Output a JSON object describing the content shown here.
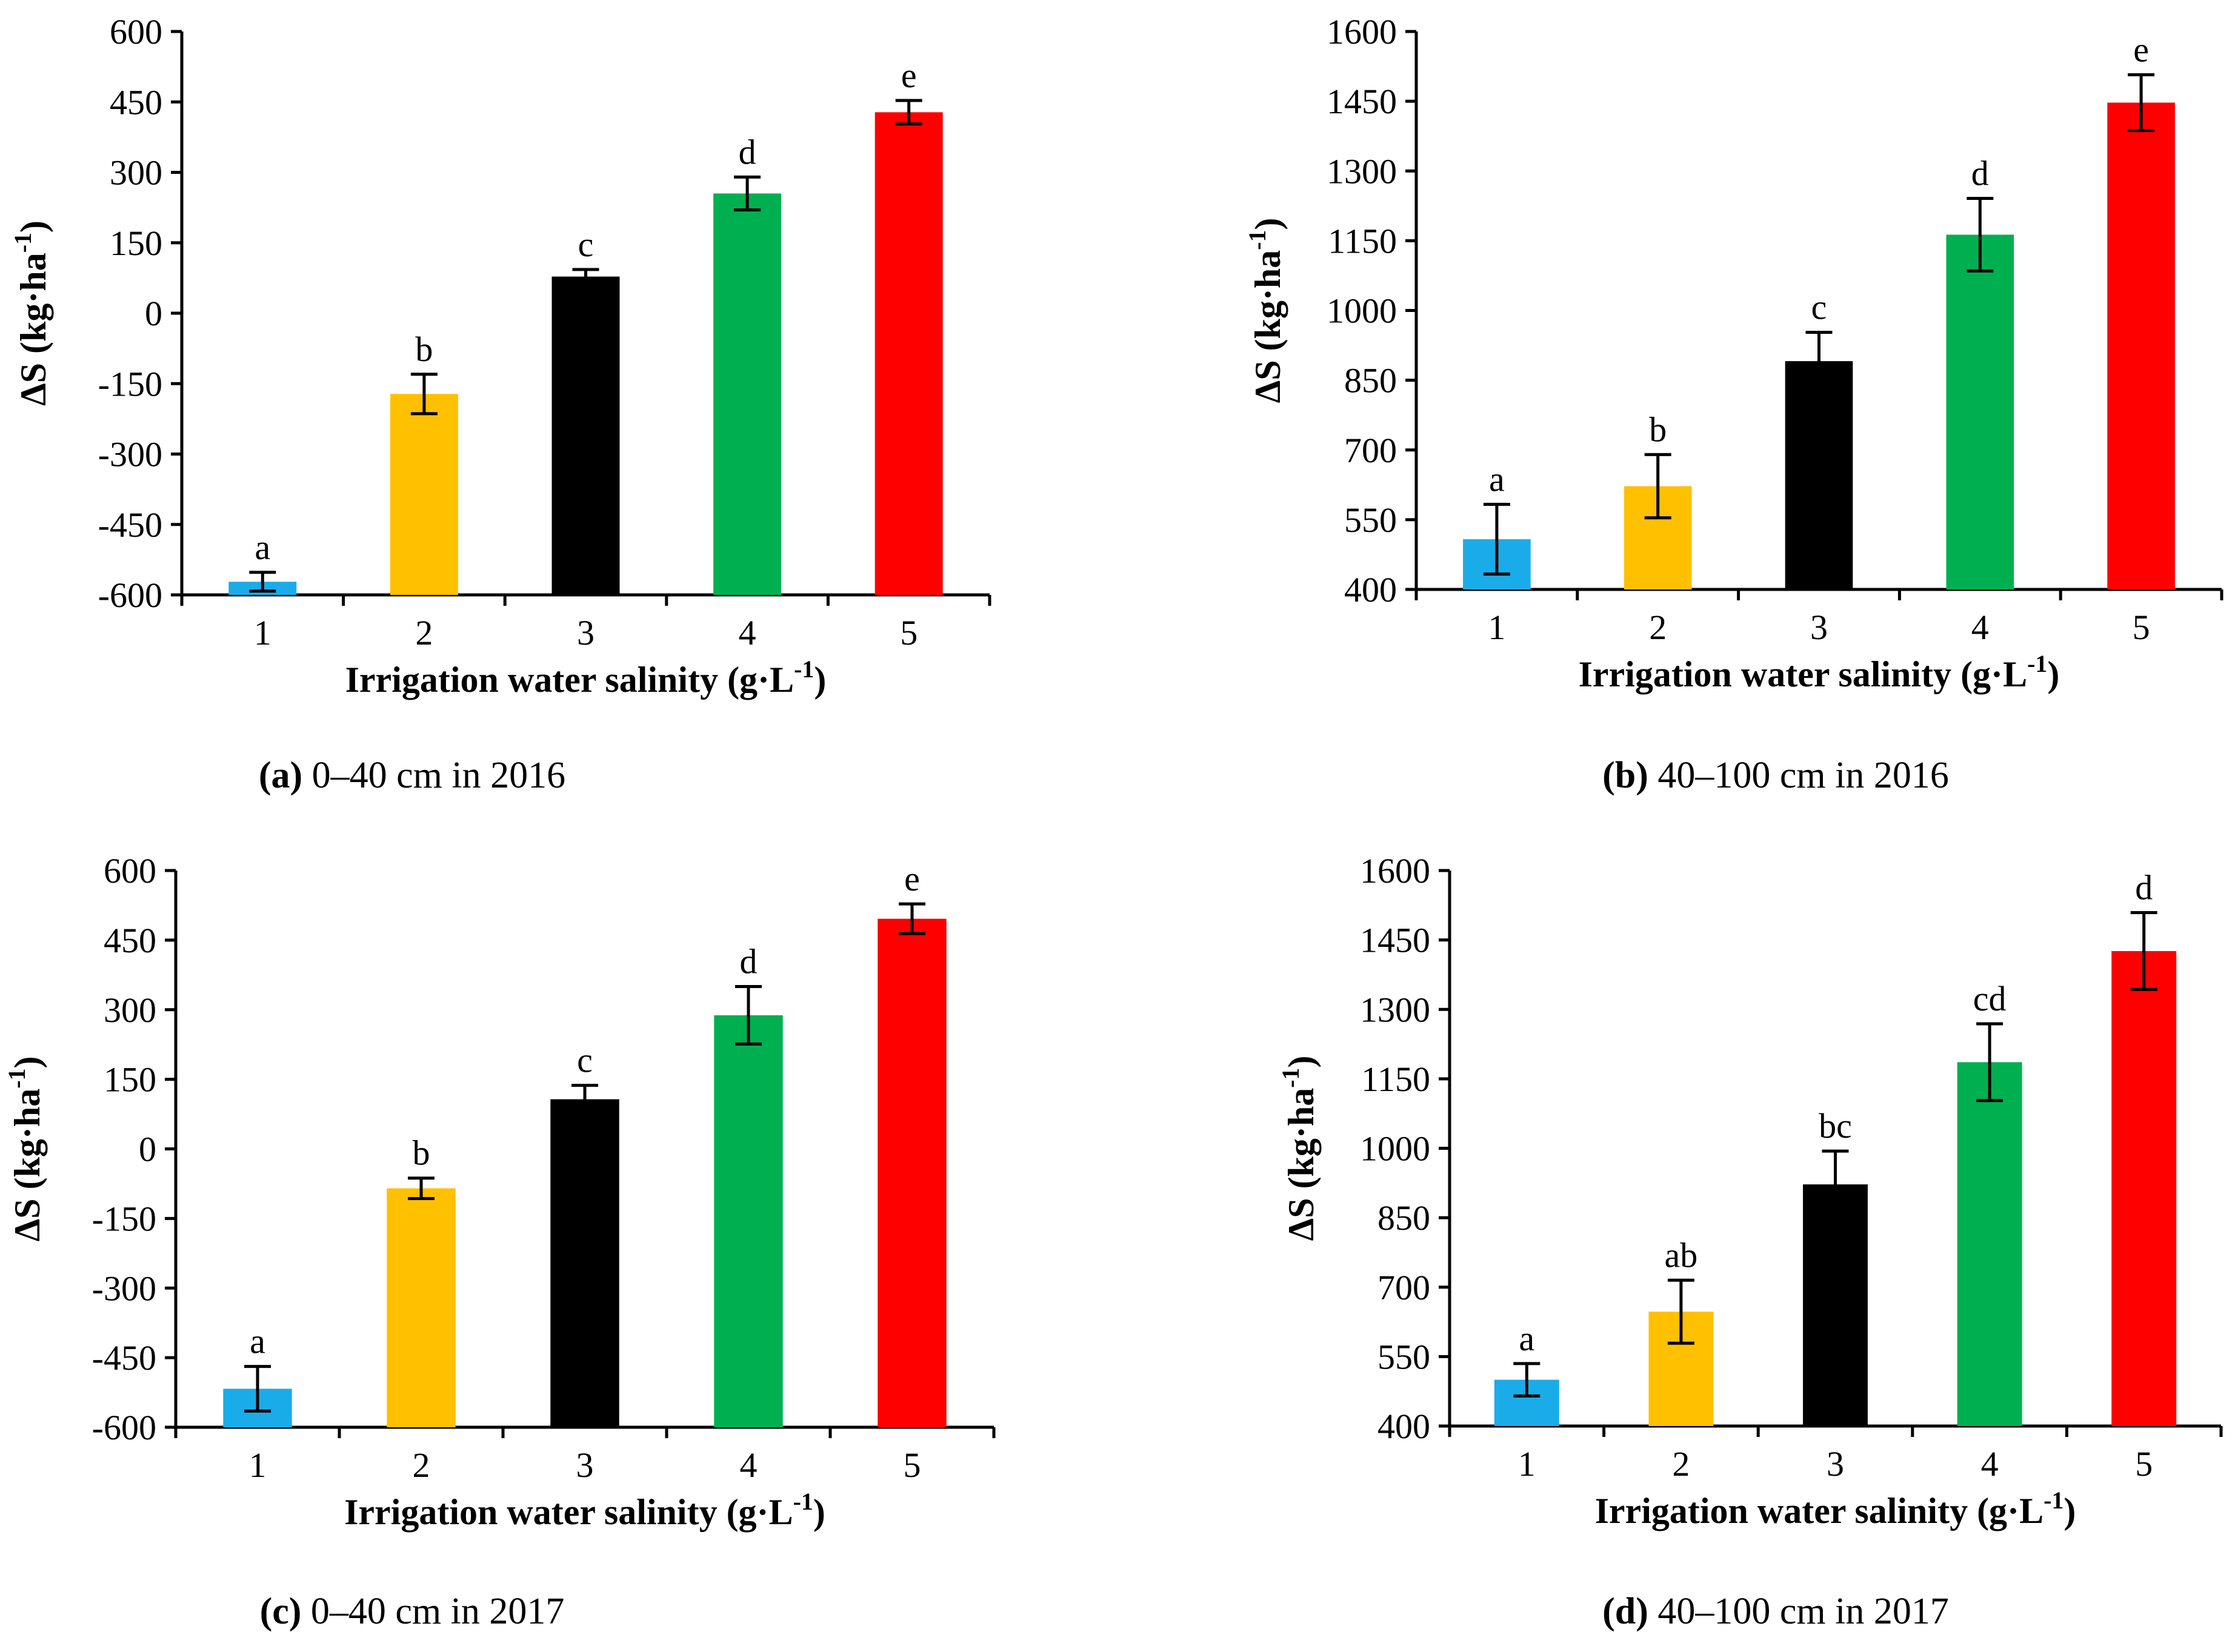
{
  "colors": {
    "bar_1": "#1AACE8",
    "bar_2": "#FFC000",
    "bar_3": "#000000",
    "bar_4": "#00B050",
    "bar_5": "#FF0000",
    "axis": "#000000"
  },
  "chart_data": [
    {
      "type": "bar",
      "caption_label": "(a)",
      "caption_text": "0–40 cm in 2016",
      "categories": [
        "1",
        "2",
        "3",
        "4",
        "5"
      ],
      "values": [
        -572,
        -172,
        78,
        255,
        428
      ],
      "error": [
        20,
        42,
        15,
        35,
        25
      ],
      "significance": [
        "a",
        "b",
        "c",
        "d",
        "e"
      ],
      "xlabel": "Irrigation water salinity (g·L",
      "xlabel_sup": "-1",
      "xlabel_end": ")",
      "ylabel": "ΔS (kg·ha",
      "ylabel_sup": "-1",
      "ylabel_end": ")",
      "ylim": [
        -600,
        600
      ],
      "yticks": [
        -600,
        -450,
        -300,
        -150,
        0,
        150,
        300,
        450,
        600
      ],
      "ytick_labels": [
        "-600",
        "-450",
        "-300",
        "-150",
        "0",
        "150",
        "300",
        "450",
        "600"
      ],
      "grid": false
    },
    {
      "type": "bar",
      "caption_label": "(b)",
      "caption_text": "40–100 cm in 2016",
      "categories": [
        "1",
        "2",
        "3",
        "4",
        "5"
      ],
      "values": [
        508,
        622,
        891,
        1163,
        1447
      ],
      "error": [
        75,
        68,
        62,
        78,
        60
      ],
      "significance": [
        "a",
        "b",
        "c",
        "d",
        "e"
      ],
      "xlabel": "Irrigation water salinity (g·L",
      "xlabel_sup": "-1",
      "xlabel_end": ")",
      "ylabel": "ΔS (kg·ha",
      "ylabel_sup": "-1",
      "ylabel_end": ")",
      "ylim": [
        400,
        1600
      ],
      "yticks": [
        400,
        550,
        700,
        850,
        1000,
        1150,
        1300,
        1450,
        1600
      ],
      "ytick_labels": [
        "400",
        "550",
        "700",
        "850",
        "1000",
        "1150",
        "1300",
        "1450",
        "1600"
      ],
      "grid": false
    },
    {
      "type": "bar",
      "caption_label": "(c)",
      "caption_text": "0–40 cm in 2017",
      "categories": [
        "1",
        "2",
        "3",
        "4",
        "5"
      ],
      "values": [
        -517,
        -85,
        107,
        288,
        496
      ],
      "error": [
        48,
        22,
        30,
        62,
        32
      ],
      "significance": [
        "a",
        "b",
        "c",
        "d",
        "e"
      ],
      "xlabel": "Irrigation water salinity (g·L",
      "xlabel_sup": "-1",
      "xlabel_end": ")",
      "ylabel": "ΔS (kg·ha",
      "ylabel_sup": "-1",
      "ylabel_end": ")",
      "ylim": [
        -600,
        600
      ],
      "yticks": [
        -600,
        -450,
        -300,
        -150,
        0,
        150,
        300,
        450,
        600
      ],
      "ytick_labels": [
        "-600",
        "-450",
        "-300",
        "-150",
        "0",
        "150",
        "300",
        "450",
        "600"
      ],
      "grid": false
    },
    {
      "type": "bar",
      "caption_label": "(d)",
      "caption_text": "40–100 cm in 2017",
      "categories": [
        "1",
        "2",
        "3",
        "4",
        "5"
      ],
      "values": [
        500,
        647,
        922,
        1186,
        1426
      ],
      "error": [
        35,
        68,
        72,
        83,
        83
      ],
      "significance": [
        "a",
        "ab",
        "bc",
        "cd",
        "d"
      ],
      "xlabel": "Irrigation water salinity (g·L",
      "xlabel_sup": "-1",
      "xlabel_end": ")",
      "ylabel": "ΔS (kg·ha",
      "ylabel_sup": "-1",
      "ylabel_end": ")",
      "ylim": [
        400,
        1600
      ],
      "yticks": [
        400,
        550,
        700,
        850,
        1000,
        1150,
        1300,
        1450,
        1600
      ],
      "ytick_labels": [
        "400",
        "550",
        "700",
        "850",
        "1000",
        "1150",
        "1300",
        "1450",
        "1600"
      ],
      "grid": false
    }
  ]
}
